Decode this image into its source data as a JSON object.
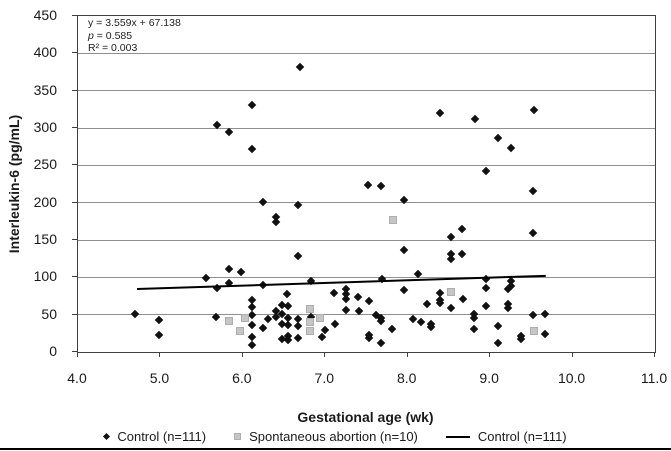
{
  "chart_data": {
    "type": "scatter",
    "title": "",
    "xlabel": "Gestational age (wk)",
    "ylabel": "Interleukin-6 (pg/mL)",
    "xlim": [
      4.0,
      11.0
    ],
    "ylim": [
      0,
      450
    ],
    "grid": "horizontal",
    "legend_position": "bottom",
    "x_ticks": [
      4.0,
      5.0,
      6.0,
      7.0,
      8.0,
      9.0,
      10.0,
      11.0
    ],
    "x_tick_labels": [
      "4.0",
      "5.0",
      "6.0",
      "7.0",
      "8.0",
      "9.0",
      "10.0",
      "11.0"
    ],
    "y_ticks": [
      0,
      50,
      100,
      150,
      200,
      250,
      300,
      350,
      400,
      450
    ],
    "y_tick_labels": [
      "0",
      "50",
      "100",
      "150",
      "200",
      "250",
      "300",
      "350",
      "400",
      "450"
    ],
    "annotation": {
      "equation": "y = 3.559x + 67.138",
      "p_symbol": "p",
      "p_rest": " = 0.585",
      "r2": "R² = 0.003"
    },
    "series": [
      {
        "name": "Control (n=111)",
        "marker": "diamond",
        "color": "#111111",
        "points": [
          [
            4.69,
            51
          ],
          [
            4.98,
            43
          ],
          [
            4.98,
            23
          ],
          [
            5.55,
            99
          ],
          [
            5.67,
            47
          ],
          [
            5.69,
            304
          ],
          [
            5.69,
            86
          ],
          [
            5.83,
            294
          ],
          [
            5.83,
            111
          ],
          [
            5.83,
            92
          ],
          [
            5.98,
            107
          ],
          [
            6.11,
            331
          ],
          [
            6.11,
            272
          ],
          [
            6.11,
            70
          ],
          [
            6.11,
            60
          ],
          [
            6.11,
            50
          ],
          [
            6.11,
            36
          ],
          [
            6.11,
            20
          ],
          [
            6.11,
            10
          ],
          [
            6.24,
            32
          ],
          [
            6.25,
            201
          ],
          [
            6.25,
            90
          ],
          [
            6.3,
            44
          ],
          [
            6.4,
            181
          ],
          [
            6.4,
            174
          ],
          [
            6.4,
            55
          ],
          [
            6.4,
            47
          ],
          [
            6.48,
            63
          ],
          [
            6.48,
            51
          ],
          [
            6.48,
            37
          ],
          [
            6.48,
            17
          ],
          [
            6.54,
            78
          ],
          [
            6.55,
            62
          ],
          [
            6.55,
            46
          ],
          [
            6.55,
            36
          ],
          [
            6.55,
            21
          ],
          [
            6.55,
            16
          ],
          [
            6.67,
            197
          ],
          [
            6.67,
            128
          ],
          [
            6.67,
            44
          ],
          [
            6.67,
            35
          ],
          [
            6.67,
            19
          ],
          [
            6.69,
            382
          ],
          [
            6.83,
            95
          ],
          [
            6.83,
            47
          ],
          [
            6.96,
            20
          ],
          [
            7.0,
            30
          ],
          [
            7.11,
            79
          ],
          [
            7.12,
            38
          ],
          [
            7.25,
            84
          ],
          [
            7.25,
            78
          ],
          [
            7.25,
            71
          ],
          [
            7.25,
            56
          ],
          [
            7.4,
            73
          ],
          [
            7.41,
            55
          ],
          [
            7.52,
            224
          ],
          [
            7.53,
            68
          ],
          [
            7.53,
            23
          ],
          [
            7.53,
            19
          ],
          [
            7.61,
            50
          ],
          [
            7.67,
            222
          ],
          [
            7.67,
            46
          ],
          [
            7.67,
            42
          ],
          [
            7.67,
            12
          ],
          [
            7.69,
            98
          ],
          [
            7.81,
            31
          ],
          [
            7.95,
            204
          ],
          [
            7.95,
            137
          ],
          [
            7.95,
            83
          ],
          [
            8.07,
            44
          ],
          [
            8.12,
            105
          ],
          [
            8.16,
            40
          ],
          [
            8.23,
            64
          ],
          [
            8.28,
            38
          ],
          [
            8.28,
            34
          ],
          [
            8.39,
            320
          ],
          [
            8.39,
            79
          ],
          [
            8.39,
            70
          ],
          [
            8.39,
            66
          ],
          [
            8.53,
            154
          ],
          [
            8.53,
            131
          ],
          [
            8.53,
            125
          ],
          [
            8.53,
            59
          ],
          [
            8.66,
            165
          ],
          [
            8.66,
            131
          ],
          [
            8.67,
            71
          ],
          [
            8.8,
            51
          ],
          [
            8.8,
            45
          ],
          [
            8.8,
            31
          ],
          [
            8.82,
            312
          ],
          [
            8.95,
            242
          ],
          [
            8.95,
            98
          ],
          [
            8.95,
            86
          ],
          [
            8.95,
            62
          ],
          [
            9.1,
            286
          ],
          [
            9.1,
            35
          ],
          [
            9.1,
            12
          ],
          [
            9.22,
            85
          ],
          [
            9.22,
            64
          ],
          [
            9.22,
            59
          ],
          [
            9.25,
            273
          ],
          [
            9.25,
            95
          ],
          [
            9.25,
            88
          ],
          [
            9.37,
            21
          ],
          [
            9.37,
            17
          ],
          [
            9.52,
            216
          ],
          [
            9.52,
            159
          ],
          [
            9.52,
            50
          ],
          [
            9.53,
            324
          ],
          [
            9.66,
            51
          ],
          [
            9.66,
            24
          ]
        ]
      },
      {
        "name": "Spontaneous abortion (n=10)",
        "marker": "square",
        "color": "#c6c6c6",
        "points": [
          [
            5.83,
            42
          ],
          [
            5.96,
            28
          ],
          [
            6.02,
            45
          ],
          [
            6.82,
            58
          ],
          [
            6.82,
            40
          ],
          [
            6.82,
            28
          ],
          [
            6.94,
            46
          ],
          [
            7.82,
            177
          ],
          [
            8.53,
            80
          ],
          [
            9.53,
            28
          ]
        ]
      }
    ],
    "trend_line": {
      "name": "Control (n=111)",
      "slope": 3.559,
      "intercept": 67.138,
      "x_start": 4.71,
      "x_end": 9.67,
      "color": "#000000"
    }
  }
}
